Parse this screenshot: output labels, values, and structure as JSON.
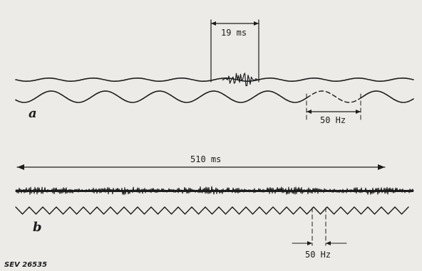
{
  "panel_a": {
    "letter": "a",
    "duration_label": "19 ms",
    "frequency_label": "50 Hz"
  },
  "panel_b": {
    "letter": "b",
    "duration_label": "510 ms",
    "frequency_label": "50 Hz"
  },
  "catalog_number": "SEV 26535"
}
